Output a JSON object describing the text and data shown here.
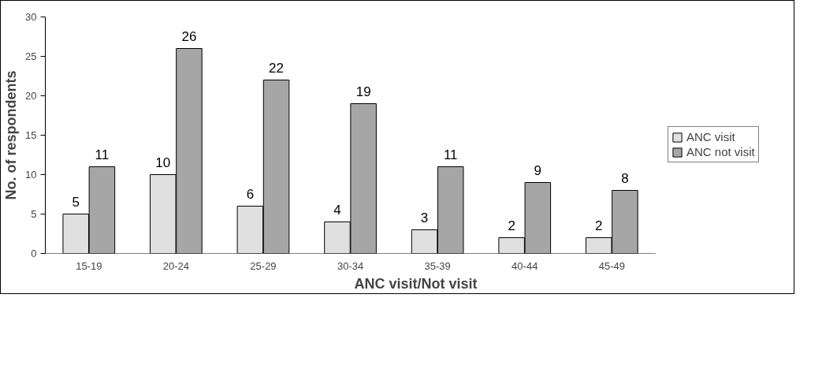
{
  "chart_data": {
    "type": "bar",
    "xlabel": "ANC visit/Not visit",
    "ylabel": "No. of respondents",
    "categories": [
      "15-19",
      "20-24",
      "25-29",
      "30-34",
      "35-39",
      "40-44",
      "45-49"
    ],
    "series": [
      {
        "name": "ANC visit",
        "color": "#e0e0e0",
        "values": [
          5,
          10,
          6,
          4,
          3,
          2,
          2
        ]
      },
      {
        "name": "ANC not visit",
        "color": "#a6a6a6",
        "values": [
          11,
          26,
          22,
          19,
          11,
          9,
          8
        ]
      }
    ],
    "ylim": [
      0,
      30
    ],
    "yticks": [
      0,
      5,
      10,
      15,
      20,
      25,
      30
    ],
    "grid": false,
    "legend": "right",
    "data_labels": true
  }
}
